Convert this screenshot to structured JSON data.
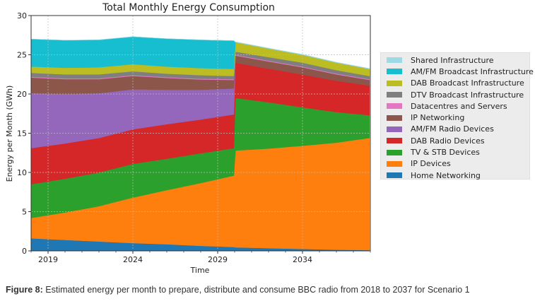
{
  "caption": {
    "label": "Figure 8:",
    "text": " Estimated energy per month to prepare, distribute and consume BBC radio from 2018 to 2037 for Scenario 1"
  },
  "chart_data": {
    "type": "area",
    "stacked": true,
    "title": "Total Monthly Energy Consumption",
    "xlabel": "Time",
    "ylabel": "Energy per Month (GWh)",
    "xlim": [
      2018,
      2038
    ],
    "ylim": [
      0,
      30
    ],
    "xticks": [
      2019,
      2024,
      2029,
      2034
    ],
    "xtick_labels": [
      "2019",
      "2024",
      "2029",
      "2034"
    ],
    "x_minor_ticks_every_year": true,
    "yticks": [
      0,
      5,
      10,
      15,
      20,
      25,
      30
    ],
    "ytick_labels": [
      "0",
      "5",
      "10",
      "15",
      "20",
      "25",
      "30"
    ],
    "grid": true,
    "legend_position": "right",
    "x": [
      2018,
      2020,
      2022,
      2024,
      2026,
      2028,
      2029.95,
      2030.05,
      2032,
      2034,
      2036,
      2037.95
    ],
    "series": [
      {
        "name": "Home Networking",
        "color": "#1f77b4",
        "values": [
          1.6,
          1.4,
          1.2,
          1.0,
          0.85,
          0.65,
          0.5,
          0.45,
          0.35,
          0.25,
          0.15,
          0.1
        ]
      },
      {
        "name": "IP Devices",
        "color": "#ff7f0e",
        "values": [
          2.6,
          3.5,
          4.5,
          5.8,
          6.9,
          8.0,
          9.1,
          12.35,
          12.7,
          13.15,
          13.65,
          14.3
        ]
      },
      {
        "name": "TV & STB Devices",
        "color": "#2ca02c",
        "values": [
          4.3,
          4.3,
          4.3,
          4.3,
          4.0,
          3.8,
          3.5,
          6.7,
          5.9,
          4.9,
          3.9,
          2.9
        ]
      },
      {
        "name": "DAB Radio Devices",
        "color": "#d62728",
        "values": [
          4.6,
          4.5,
          4.4,
          4.4,
          4.4,
          4.3,
          4.3,
          4.5,
          4.3,
          4.2,
          4.0,
          3.8
        ]
      },
      {
        "name": "AM/FM Radio Devices",
        "color": "#9467bd",
        "values": [
          7.0,
          6.3,
          5.7,
          5.1,
          4.4,
          3.8,
          3.3,
          0,
          0,
          0,
          0,
          0
        ]
      },
      {
        "name": "IP Networking",
        "color": "#8c564b",
        "values": [
          2.0,
          1.9,
          1.8,
          1.7,
          1.5,
          1.3,
          1.1,
          0.9,
          0.9,
          0.9,
          0.8,
          0.7
        ]
      },
      {
        "name": "Datacentres and Servers",
        "color": "#e377c2",
        "values": [
          0.1,
          0.1,
          0.1,
          0.1,
          0.1,
          0.1,
          0.1,
          0.1,
          0.1,
          0.1,
          0.1,
          0.1
        ]
      },
      {
        "name": "DTV Broadcast Infrastructure",
        "color": "#7f7f7f",
        "values": [
          0.5,
          0.5,
          0.5,
          0.5,
          0.45,
          0.45,
          0.4,
          0.4,
          0.45,
          0.5,
          0.45,
          0.4
        ]
      },
      {
        "name": "DAB Broadcast Infrastructure",
        "color": "#bcbd22",
        "values": [
          0.8,
          0.85,
          0.9,
          0.9,
          0.9,
          0.9,
          0.9,
          1.2,
          1.1,
          1.0,
          0.95,
          0.9
        ]
      },
      {
        "name": "AM/FM Broadcast Infrastructure",
        "color": "#17becf",
        "values": [
          3.5,
          3.5,
          3.5,
          3.5,
          3.55,
          3.6,
          3.6,
          0,
          0,
          0,
          0,
          0
        ]
      },
      {
        "name": "Shared Infrastructure",
        "color": "#9edae5",
        "values": [
          0.0,
          0.0,
          0.0,
          0.0,
          0.0,
          0.0,
          0.0,
          0.05,
          0.05,
          0.05,
          0.05,
          0.05
        ]
      }
    ],
    "legend_order": [
      "Shared Infrastructure",
      "AM/FM Broadcast Infrastructure",
      "DAB Broadcast Infrastructure",
      "DTV Broadcast Infrastructure",
      "Datacentres and Servers",
      "IP Networking",
      "AM/FM Radio Devices",
      "DAB Radio Devices",
      "TV & STB Devices",
      "IP Devices",
      "Home Networking"
    ]
  }
}
